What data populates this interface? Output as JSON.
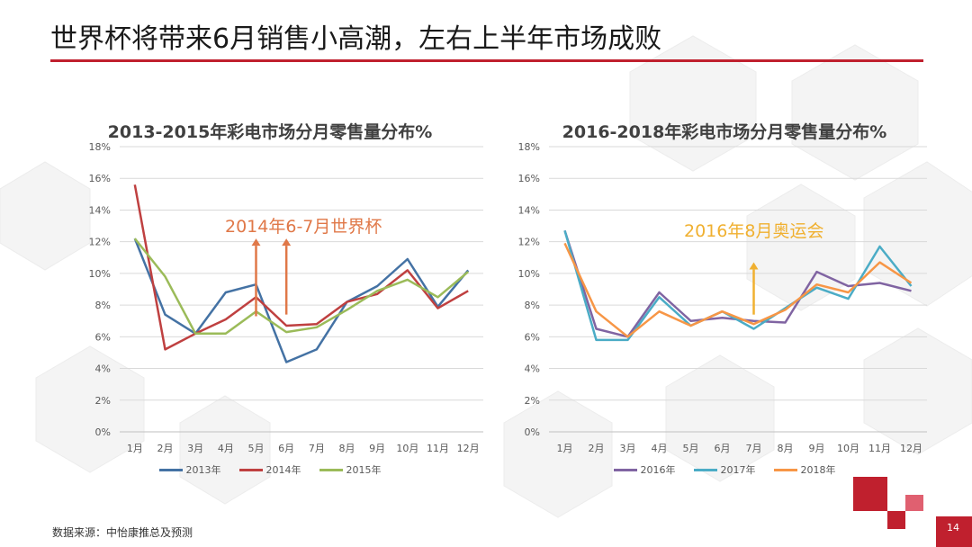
{
  "slide": {
    "title": "世界杯将带来6月销售小高潮，左右上半年市场成败",
    "source": "数据来源：中怡康推总及预测",
    "page_number": "14",
    "accent_color": "#c0202e"
  },
  "chart_data": [
    {
      "type": "line",
      "title": "2013-2015年彩电市场分月零售量分布%",
      "categories": [
        "1月",
        "2月",
        "3月",
        "4月",
        "5月",
        "6月",
        "7月",
        "8月",
        "9月",
        "10月",
        "11月",
        "12月"
      ],
      "ylim": [
        0,
        18
      ],
      "yticks": [
        "0%",
        "2%",
        "4%",
        "6%",
        "8%",
        "10%",
        "12%",
        "14%",
        "16%",
        "18%"
      ],
      "grid": true,
      "legend_position": "bottom",
      "series": [
        {
          "name": "2013年",
          "color": "#4472a4",
          "values": [
            12.2,
            7.4,
            6.2,
            8.8,
            9.3,
            4.4,
            5.2,
            8.2,
            9.2,
            10.9,
            7.9,
            10.2
          ]
        },
        {
          "name": "2014年",
          "color": "#bf4040",
          "values": [
            15.6,
            5.2,
            6.2,
            7.1,
            8.5,
            6.7,
            6.8,
            8.2,
            8.7,
            10.2,
            7.8,
            8.9
          ]
        },
        {
          "name": "2015年",
          "color": "#9bbb59",
          "values": [
            12.2,
            9.8,
            6.2,
            6.2,
            7.6,
            6.3,
            6.6,
            7.7,
            8.9,
            9.6,
            8.5,
            10.1
          ]
        }
      ],
      "annotation": {
        "text": "2014年6-7月世界杯",
        "color": "#e07848"
      },
      "arrows": [
        {
          "x": "5月",
          "from": 7.3,
          "to": 12.2
        },
        {
          "x": "6月",
          "from": 7.4,
          "to": 12.2
        }
      ]
    },
    {
      "type": "line",
      "title": "2016-2018年彩电市场分月零售量分布%",
      "categories": [
        "1月",
        "2月",
        "3月",
        "4月",
        "5月",
        "6月",
        "7月",
        "8月",
        "9月",
        "10月",
        "11月",
        "12月"
      ],
      "ylim": [
        0,
        18
      ],
      "yticks": [
        "0%",
        "2%",
        "4%",
        "6%",
        "8%",
        "10%",
        "12%",
        "14%",
        "16%",
        "18%"
      ],
      "grid": true,
      "legend_position": "bottom",
      "series": [
        {
          "name": "2016年",
          "color": "#8064a2",
          "values": [
            12.7,
            6.5,
            6.0,
            8.8,
            7.0,
            7.2,
            7.0,
            6.9,
            10.1,
            9.2,
            9.4,
            8.9
          ]
        },
        {
          "name": "2017年",
          "color": "#4bacc6",
          "values": [
            12.7,
            5.8,
            5.8,
            8.5,
            6.7,
            7.6,
            6.5,
            7.8,
            9.1,
            8.4,
            11.7,
            9.2
          ]
        },
        {
          "name": "2018年",
          "color": "#f79646",
          "values": [
            11.9,
            7.6,
            6.0,
            7.6,
            6.7,
            7.6,
            6.8,
            7.7,
            9.3,
            8.8,
            10.7,
            9.4
          ]
        }
      ],
      "annotation": {
        "text": "2016年8月奥运会",
        "color": "#f0b030"
      },
      "arrows": [
        {
          "x": "7月",
          "from": 7.4,
          "to": 10.7
        }
      ]
    }
  ]
}
